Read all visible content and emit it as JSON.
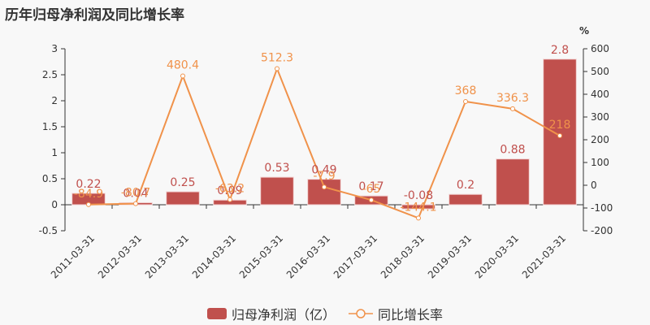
{
  "title": "历年归母净利润及同比增长率",
  "right_unit": "%",
  "legend": {
    "bar_label": "归母净利润（亿）",
    "line_label": "同比增长率"
  },
  "colors": {
    "bar": "#c0504d",
    "line": "#f0924a",
    "axis": "#333333",
    "background": "#f8f8f8"
  },
  "chart_data": {
    "type": "bar+line",
    "title": "历年归母净利润及同比增长率",
    "categories": [
      "2011-03-31",
      "2012-03-31",
      "2013-03-31",
      "2014-03-31",
      "2015-03-31",
      "2016-03-31",
      "2017-03-31",
      "2018-03-31",
      "2019-03-31",
      "2020-03-31",
      "2021-03-31"
    ],
    "series": [
      {
        "name": "归母净利润（亿）",
        "type": "bar",
        "axis": "left",
        "values": [
          0.22,
          0.04,
          0.25,
          0.09,
          0.53,
          0.49,
          0.17,
          -0.08,
          0.2,
          0.88,
          2.8
        ]
      },
      {
        "name": "同比增长率",
        "type": "line",
        "axis": "right",
        "values": [
          -84.9,
          -80.7,
          480.4,
          -63.2,
          512.3,
          -7.9,
          -65,
          -144.1,
          368,
          336.3,
          218
        ]
      }
    ],
    "left_axis": {
      "ylim": [
        -0.5,
        3
      ],
      "ticks": [
        "-0.5",
        "0",
        "0.5",
        "1",
        "1.5",
        "2",
        "2.5",
        "3"
      ]
    },
    "right_axis": {
      "ylim": [
        -200,
        600
      ],
      "ticks": [
        "-200",
        "-100",
        "0",
        "100",
        "200",
        "300",
        "400",
        "500",
        "600"
      ],
      "label": "%"
    },
    "legend_position": "bottom",
    "grid": false
  }
}
